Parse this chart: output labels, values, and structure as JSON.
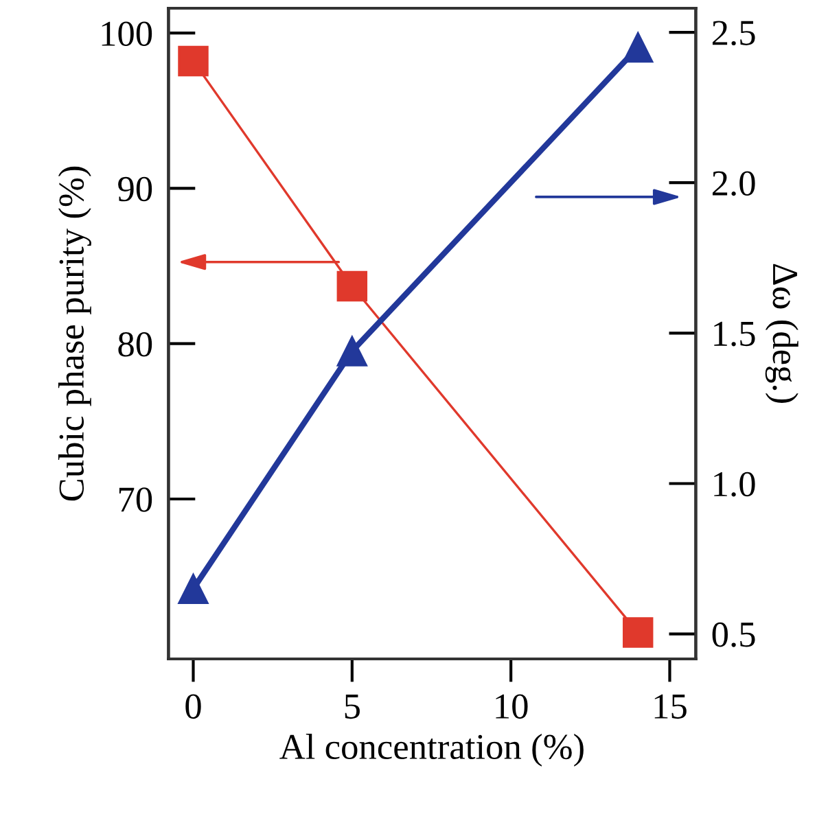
{
  "chart_data": {
    "type": "line",
    "xlabel": "Al concentration (%)",
    "ylabel": "Cubic phase purity (%)",
    "y2label": "Δω (deg.)",
    "x": [
      0,
      5,
      14
    ],
    "series": [
      {
        "color": "#e0392c",
        "values": [
          98.2,
          83.7,
          61.4
        ],
        "marker": "square",
        "axis": "y"
      },
      {
        "color": "#22389a",
        "values": [
          0.65,
          1.44,
          2.45
        ],
        "marker": "triangle",
        "axis": "y2"
      }
    ],
    "xlim": [
      -0.78,
      15.82
    ],
    "xticks": [
      0,
      5,
      10,
      15
    ],
    "ylim": [
      59.7,
      101.6
    ],
    "yticks": [
      70,
      80,
      90,
      100
    ],
    "y2lim": [
      0.417,
      2.58
    ],
    "y2ticks": [
      0.5,
      {
        "value": 1,
        "label": "1.0"
      },
      1.5,
      {
        "value": 2,
        "label": "2.0"
      },
      2.5
    ],
    "grid": false,
    "legend": false,
    "line_style": "solid"
  }
}
